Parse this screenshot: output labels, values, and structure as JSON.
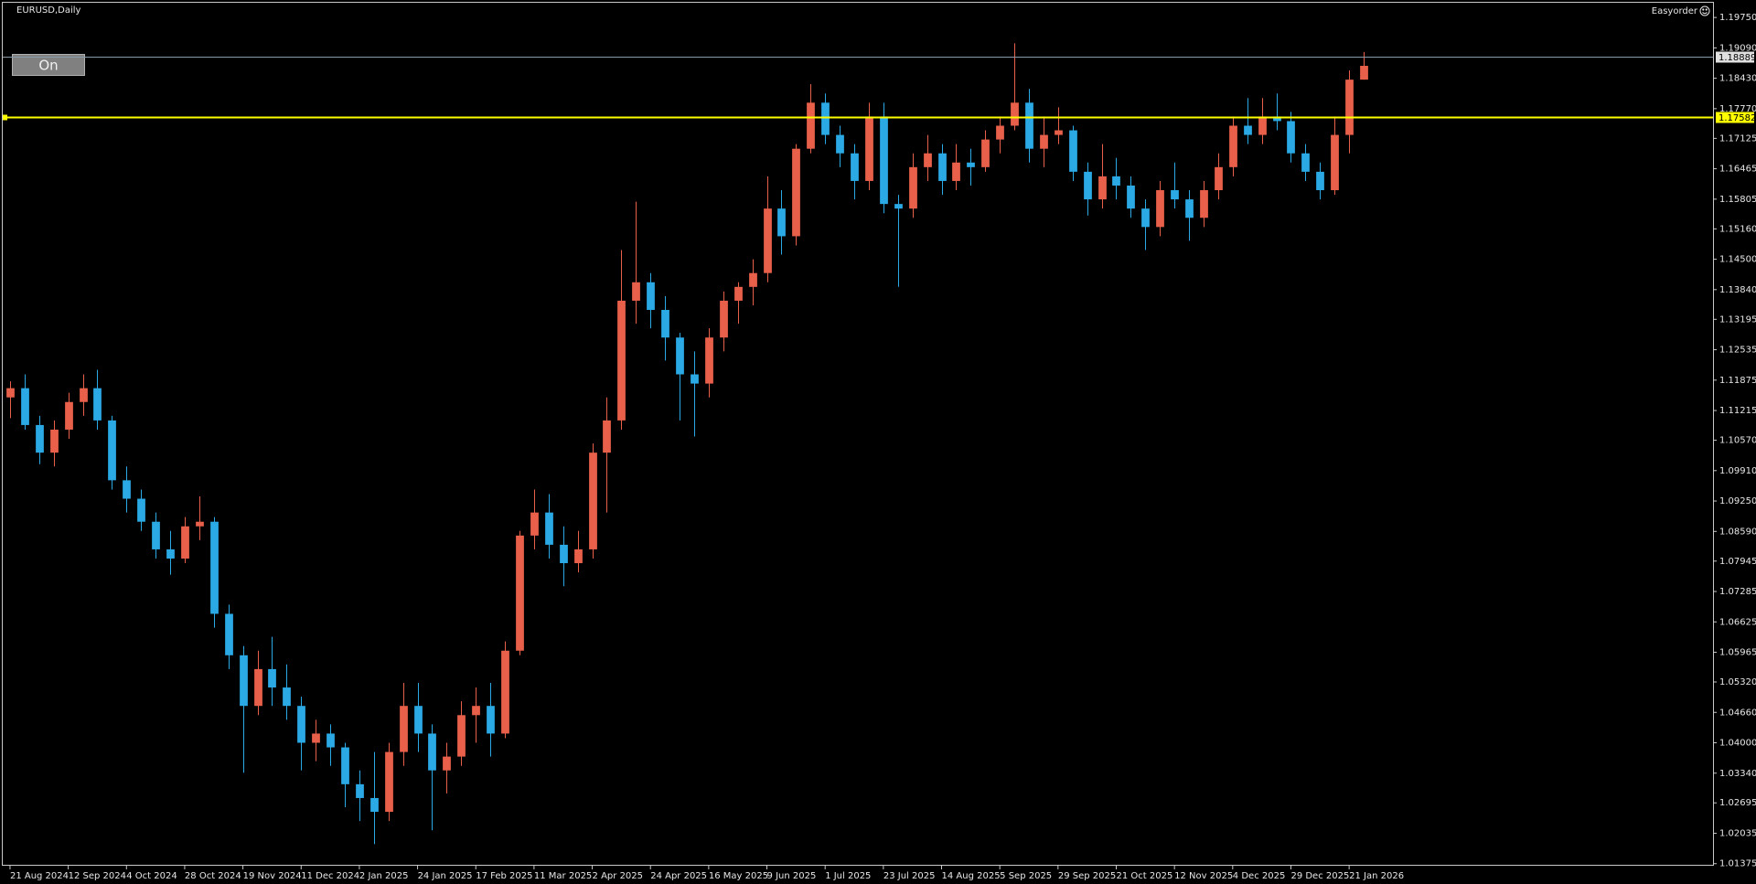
{
  "chart_data": {
    "type": "candlestick",
    "title": "EURUSD,Daily",
    "indicator": "Easyorder",
    "button": "On",
    "up_color": "#e9604a",
    "down_color": "#2aa9e4",
    "xlim": [
      -0.5,
      117
    ],
    "ylim": [
      1.0133,
      1.2009
    ],
    "xticks": [
      {
        "value": 0,
        "label": "21 Aug 2024"
      },
      {
        "value": 4,
        "label": "12 Sep 2024"
      },
      {
        "value": 8,
        "label": "4 Oct 2024"
      },
      {
        "value": 12,
        "label": "28 Oct 2024"
      },
      {
        "value": 16,
        "label": "19 Nov 2024"
      },
      {
        "value": 20,
        "label": "11 Dec 2024"
      },
      {
        "value": 24,
        "label": "2 Jan 2025"
      },
      {
        "value": 28,
        "label": "24 Jan 2025"
      },
      {
        "value": 32,
        "label": "17 Feb 2025"
      },
      {
        "value": 36,
        "label": "11 Mar 2025"
      },
      {
        "value": 40,
        "label": "2 Apr 2025"
      },
      {
        "value": 44,
        "label": "24 Apr 2025"
      },
      {
        "value": 48,
        "label": "16 May 2025"
      },
      {
        "value": 52,
        "label": "9 Jun 2025"
      },
      {
        "value": 56,
        "label": "1 Jul 2025"
      },
      {
        "value": 60,
        "label": "23 Jul 2025"
      },
      {
        "value": 64,
        "label": "14 Aug 2025"
      },
      {
        "value": 68,
        "label": "5 Sep 2025"
      },
      {
        "value": 72,
        "label": "29 Sep 2025"
      },
      {
        "value": 76,
        "label": "21 Oct 2025"
      },
      {
        "value": 80,
        "label": "12 Nov 2025"
      },
      {
        "value": 84,
        "label": "4 Dec 2025"
      },
      {
        "value": 88,
        "label": "29 Dec 2025"
      },
      {
        "value": 92,
        "label": "21 Jan 2026"
      }
    ],
    "yticks": [
      {
        "value": 1.1975,
        "label": "1.19750"
      },
      {
        "value": 1.1909,
        "label": "1.19090"
      },
      {
        "value": 1.1843,
        "label": "1.18430"
      },
      {
        "value": 1.1777,
        "label": "1.17770"
      },
      {
        "value": 1.17125,
        "label": "1.17125"
      },
      {
        "value": 1.16465,
        "label": "1.16465"
      },
      {
        "value": 1.15805,
        "label": "1.15805"
      },
      {
        "value": 1.1516,
        "label": "1.15160"
      },
      {
        "value": 1.145,
        "label": "1.14500"
      },
      {
        "value": 1.1384,
        "label": "1.13840"
      },
      {
        "value": 1.13195,
        "label": "1.13195"
      },
      {
        "value": 1.12535,
        "label": "1.12535"
      },
      {
        "value": 1.11875,
        "label": "1.11875"
      },
      {
        "value": 1.11215,
        "label": "1.11215"
      },
      {
        "value": 1.1057,
        "label": "1.10570"
      },
      {
        "value": 1.0991,
        "label": "1.09910"
      },
      {
        "value": 1.0925,
        "label": "1.09250"
      },
      {
        "value": 1.0859,
        "label": "1.08590"
      },
      {
        "value": 1.07945,
        "label": "1.07945"
      },
      {
        "value": 1.07285,
        "label": "1.07285"
      },
      {
        "value": 1.06625,
        "label": "1.06625"
      },
      {
        "value": 1.05965,
        "label": "1.05965"
      },
      {
        "value": 1.0532,
        "label": "1.05320"
      },
      {
        "value": 1.0466,
        "label": "1.04660"
      },
      {
        "value": 1.04,
        "label": "1.04000"
      },
      {
        "value": 1.0334,
        "label": "1.03340"
      },
      {
        "value": 1.02695,
        "label": "1.02695"
      },
      {
        "value": 1.02035,
        "label": "1.02035"
      },
      {
        "value": 1.01375,
        "label": "1.01375"
      }
    ],
    "hlines": [
      {
        "value": 1.18889,
        "label": "1.18889",
        "color": "#8a9aa8"
      },
      {
        "value": 1.17582,
        "label": "1.17582",
        "color": "#ffff00"
      }
    ],
    "candles": [
      [
        1.115,
        1.1185,
        1.1105,
        1.117
      ],
      [
        1.117,
        1.12,
        1.108,
        1.109
      ],
      [
        1.109,
        1.111,
        1.1005,
        1.103
      ],
      [
        1.103,
        1.11,
        1.1,
        1.108
      ],
      [
        1.108,
        1.116,
        1.106,
        1.114
      ],
      [
        1.114,
        1.12,
        1.111,
        1.117
      ],
      [
        1.117,
        1.121,
        1.108,
        1.11
      ],
      [
        1.11,
        1.111,
        1.095,
        1.097
      ],
      [
        1.097,
        1.1,
        1.09,
        1.093
      ],
      [
        1.093,
        1.095,
        1.086,
        1.088
      ],
      [
        1.088,
        1.09,
        1.08,
        1.082
      ],
      [
        1.082,
        1.086,
        1.0765,
        1.08
      ],
      [
        1.08,
        1.089,
        1.079,
        1.087
      ],
      [
        1.087,
        1.0935,
        1.084,
        1.088
      ],
      [
        1.088,
        1.089,
        1.065,
        1.068
      ],
      [
        1.068,
        1.07,
        1.056,
        1.059
      ],
      [
        1.059,
        1.061,
        1.0335,
        1.048
      ],
      [
        1.048,
        1.06,
        1.046,
        1.056
      ],
      [
        1.056,
        1.063,
        1.048,
        1.052
      ],
      [
        1.052,
        1.057,
        1.045,
        1.048
      ],
      [
        1.048,
        1.05,
        1.034,
        1.04
      ],
      [
        1.04,
        1.045,
        1.036,
        1.042
      ],
      [
        1.042,
        1.044,
        1.035,
        1.039
      ],
      [
        1.039,
        1.04,
        1.026,
        1.031
      ],
      [
        1.031,
        1.034,
        1.023,
        1.028
      ],
      [
        1.028,
        1.038,
        1.018,
        1.025
      ],
      [
        1.025,
        1.04,
        1.023,
        1.038
      ],
      [
        1.038,
        1.053,
        1.035,
        1.048
      ],
      [
        1.048,
        1.053,
        1.038,
        1.042
      ],
      [
        1.042,
        1.044,
        1.021,
        1.034
      ],
      [
        1.034,
        1.04,
        1.029,
        1.037
      ],
      [
        1.037,
        1.049,
        1.035,
        1.046
      ],
      [
        1.046,
        1.052,
        1.04,
        1.048
      ],
      [
        1.048,
        1.053,
        1.037,
        1.042
      ],
      [
        1.042,
        1.062,
        1.041,
        1.06
      ],
      [
        1.06,
        1.086,
        1.059,
        1.085
      ],
      [
        1.085,
        1.095,
        1.082,
        1.09
      ],
      [
        1.09,
        1.094,
        1.08,
        1.083
      ],
      [
        1.083,
        1.087,
        1.074,
        1.079
      ],
      [
        1.079,
        1.086,
        1.077,
        1.082
      ],
      [
        1.082,
        1.105,
        1.08,
        1.103
      ],
      [
        1.103,
        1.115,
        1.09,
        1.11
      ],
      [
        1.11,
        1.147,
        1.108,
        1.136
      ],
      [
        1.136,
        1.1575,
        1.131,
        1.14
      ],
      [
        1.14,
        1.142,
        1.13,
        1.134
      ],
      [
        1.134,
        1.137,
        1.123,
        1.128
      ],
      [
        1.128,
        1.129,
        1.11,
        1.12
      ],
      [
        1.12,
        1.125,
        1.1065,
        1.118
      ],
      [
        1.118,
        1.13,
        1.115,
        1.128
      ],
      [
        1.128,
        1.138,
        1.125,
        1.136
      ],
      [
        1.136,
        1.14,
        1.131,
        1.139
      ],
      [
        1.139,
        1.145,
        1.135,
        1.142
      ],
      [
        1.142,
        1.163,
        1.14,
        1.156
      ],
      [
        1.156,
        1.16,
        1.146,
        1.15
      ],
      [
        1.15,
        1.17,
        1.148,
        1.169
      ],
      [
        1.169,
        1.183,
        1.168,
        1.179
      ],
      [
        1.179,
        1.181,
        1.17,
        1.172
      ],
      [
        1.172,
        1.174,
        1.165,
        1.168
      ],
      [
        1.168,
        1.17,
        1.158,
        1.162
      ],
      [
        1.162,
        1.179,
        1.16,
        1.176
      ],
      [
        1.176,
        1.179,
        1.155,
        1.157
      ],
      [
        1.157,
        1.159,
        1.139,
        1.156
      ],
      [
        1.156,
        1.168,
        1.154,
        1.165
      ],
      [
        1.165,
        1.172,
        1.162,
        1.168
      ],
      [
        1.168,
        1.17,
        1.159,
        1.162
      ],
      [
        1.162,
        1.17,
        1.16,
        1.166
      ],
      [
        1.166,
        1.169,
        1.161,
        1.165
      ],
      [
        1.165,
        1.173,
        1.164,
        1.171
      ],
      [
        1.171,
        1.176,
        1.168,
        1.174
      ],
      [
        1.174,
        1.1919,
        1.173,
        1.179
      ],
      [
        1.179,
        1.182,
        1.166,
        1.169
      ],
      [
        1.169,
        1.176,
        1.165,
        1.172
      ],
      [
        1.172,
        1.178,
        1.17,
        1.173
      ],
      [
        1.173,
        1.174,
        1.162,
        1.164
      ],
      [
        1.164,
        1.166,
        1.1545,
        1.158
      ],
      [
        1.158,
        1.17,
        1.156,
        1.163
      ],
      [
        1.163,
        1.167,
        1.158,
        1.161
      ],
      [
        1.161,
        1.163,
        1.154,
        1.156
      ],
      [
        1.156,
        1.158,
        1.147,
        1.152
      ],
      [
        1.152,
        1.162,
        1.15,
        1.16
      ],
      [
        1.16,
        1.166,
        1.156,
        1.158
      ],
      [
        1.158,
        1.16,
        1.149,
        1.154
      ],
      [
        1.154,
        1.162,
        1.152,
        1.16
      ],
      [
        1.16,
        1.168,
        1.158,
        1.165
      ],
      [
        1.165,
        1.176,
        1.163,
        1.174
      ],
      [
        1.174,
        1.18,
        1.17,
        1.172
      ],
      [
        1.172,
        1.18,
        1.17,
        1.176
      ],
      [
        1.176,
        1.181,
        1.173,
        1.175
      ],
      [
        1.175,
        1.177,
        1.166,
        1.168
      ],
      [
        1.168,
        1.17,
        1.162,
        1.164
      ],
      [
        1.164,
        1.166,
        1.158,
        1.16
      ],
      [
        1.16,
        1.176,
        1.159,
        1.172
      ],
      [
        1.172,
        1.186,
        1.168,
        1.184
      ],
      [
        1.184,
        1.19,
        1.184,
        1.187
      ]
    ]
  }
}
